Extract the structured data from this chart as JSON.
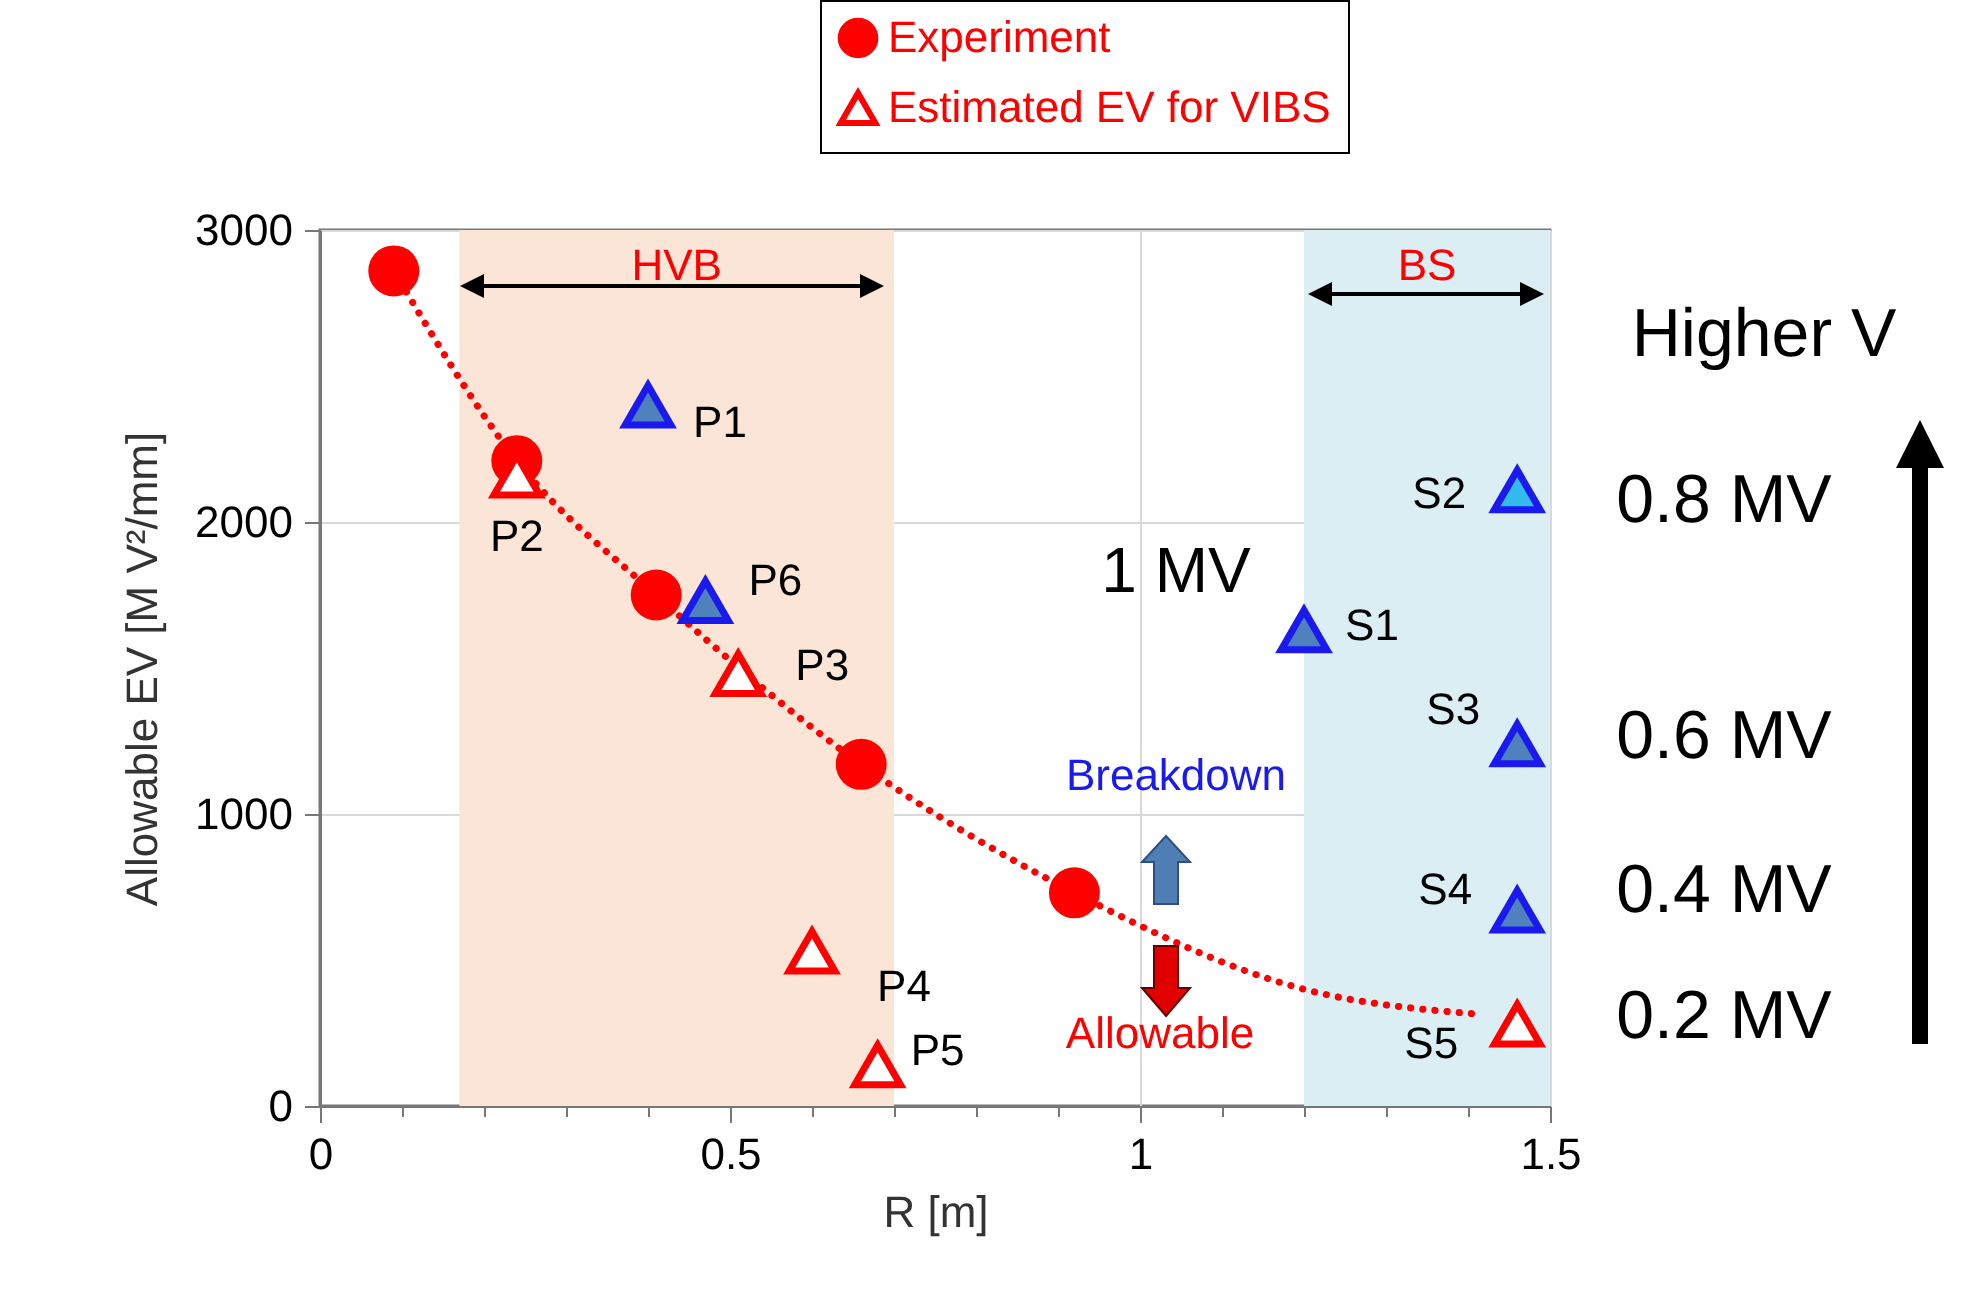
{
  "chart_data": {
    "type": "scatter",
    "xlabel": "R [m]",
    "ylabel": "Allowable EV [M V²/mm]",
    "xlim": [
      0,
      1.5
    ],
    "ylim": [
      0,
      3000
    ],
    "xticks": [
      0,
      {
        "value": 0.1,
        "label": null
      },
      {
        "value": 0.2,
        "label": null
      },
      {
        "value": 0.3,
        "label": null
      },
      {
        "value": 0.4,
        "label": null
      },
      0.5,
      {
        "value": 0.6,
        "label": null
      },
      {
        "value": 0.7,
        "label": null
      },
      {
        "value": 0.8,
        "label": null
      },
      {
        "value": 0.9,
        "label": null
      },
      1,
      {
        "value": 1.1,
        "label": null
      },
      {
        "value": 1.2,
        "label": null
      },
      {
        "value": 1.3,
        "label": null
      },
      {
        "value": 1.4,
        "label": null
      },
      1.5
    ],
    "yticks": [
      0,
      1000,
      2000,
      3000
    ],
    "grid": true,
    "legend": "top",
    "series": [
      {
        "name": "Experiment",
        "type": "scatter",
        "marker": "circle",
        "color": "#ff0000",
        "x": [
          0.09,
          0.24,
          0.41,
          0.66,
          0.92
        ],
        "values": [
          2860,
          2210,
          1750,
          1170,
          730
        ]
      },
      {
        "name": "Estimated EV for VIBS",
        "type": "scatter",
        "marker": "triangle",
        "color": "#ff0000",
        "x": [
          0.24,
          0.51,
          0.6,
          0.68,
          1.46
        ],
        "values": [
          2160,
          1480,
          530,
          140,
          280
        ]
      },
      {
        "type": "scatter",
        "marker": "triangle",
        "colors": [
          "#4f81bd",
          "#4f81bd",
          "#4f81bd",
          "#33bbee",
          "#4f81bd",
          "#4f81bd"
        ],
        "x": [
          0.4,
          0.47,
          1.2,
          1.46,
          1.46,
          1.46
        ],
        "values": [
          2400,
          1730,
          1630,
          2110,
          1240,
          670
        ]
      },
      {
        "type": "line",
        "marker": "none",
        "line_style": "dotted",
        "color": "#ff0000",
        "x": [
          0.09,
          0.24,
          0.41,
          0.66,
          0.92,
          1.2,
          1.41
        ],
        "values": [
          2860,
          2210,
          1750,
          1170,
          730,
          400,
          315
        ]
      }
    ],
    "bands": [
      {
        "axis": "x",
        "from": 0.17,
        "to": 0.7,
        "label": "HVB",
        "color": "#fbe5d6"
      },
      {
        "axis": "x",
        "from": 1.2,
        "to": 1.5,
        "label": "BS",
        "color": "#daeef3"
      }
    ],
    "annotations": [
      {
        "text": "P1",
        "x": 0.4,
        "y": 2400
      },
      {
        "text": "P2",
        "x": 0.24,
        "y": 2160
      },
      {
        "text": "P3",
        "x": 0.51,
        "y": 1480
      },
      {
        "text": "P4",
        "x": 0.6,
        "y": 530
      },
      {
        "text": "P5",
        "x": 0.68,
        "y": 140
      },
      {
        "text": "P6",
        "x": 0.47,
        "y": 1730
      },
      {
        "text": "S1",
        "x": 1.2,
        "y": 1630
      },
      {
        "text": "S2",
        "x": 1.46,
        "y": 2110
      },
      {
        "text": "S3",
        "x": 1.46,
        "y": 1240
      },
      {
        "text": "S4",
        "x": 1.46,
        "y": 670
      },
      {
        "text": "S5",
        "x": 1.46,
        "y": 280
      },
      "1 MV",
      "Breakdown",
      "Allowable",
      "Higher V",
      "0.8 MV",
      "0.6 MV",
      "0.4 MV",
      "0.2 MV"
    ]
  }
}
